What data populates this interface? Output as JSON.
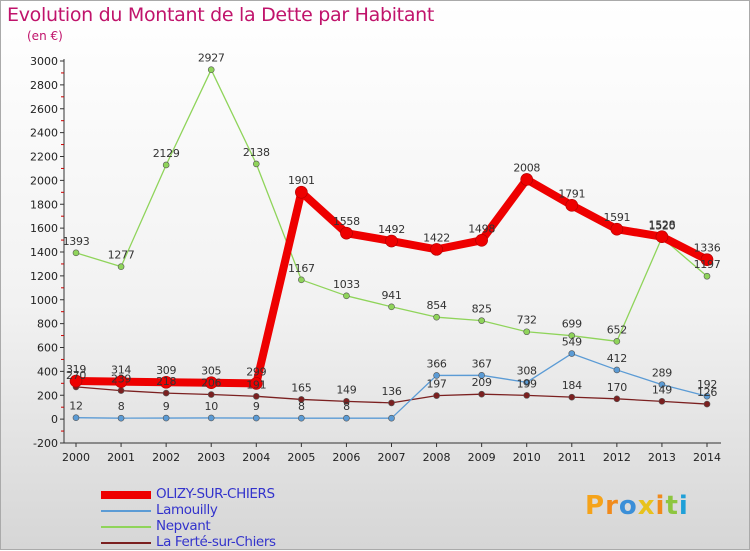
{
  "title": "Evolution du Montant de la Dette par Habitant",
  "unit_label": "(en €)",
  "logo": {
    "text": "Proxiti",
    "letters": [
      "P",
      "r",
      "o",
      "x",
      "i",
      "t",
      "i"
    ],
    "colors": [
      "#f5a31a",
      "#f08a1c",
      "#3b8fd8",
      "#e8c21c",
      "#f08a1c",
      "#8dc63f",
      "#1fa0d8"
    ]
  },
  "chart_data": {
    "type": "line",
    "title": "Evolution du Montant de la Dette par Habitant",
    "ylabel": "(en €)",
    "xlabel": "",
    "x": [
      2000,
      2001,
      2002,
      2003,
      2004,
      2005,
      2006,
      2007,
      2008,
      2009,
      2010,
      2011,
      2012,
      2013,
      2014
    ],
    "yticks": [
      -200,
      0,
      200,
      400,
      600,
      800,
      1000,
      1200,
      1400,
      1600,
      1800,
      2000,
      2200,
      2400,
      2600,
      2800,
      3000
    ],
    "ylim": [
      -200,
      3000
    ],
    "grid": false,
    "legend_position": "bottom-left",
    "series": [
      {
        "name": "OLIZY-SUR-CHIERS",
        "color": "#ee0000",
        "width": 8,
        "dot": 6,
        "values": [
          319,
          314,
          309,
          305,
          299,
          1901,
          1558,
          1492,
          1422,
          1498,
          2008,
          1791,
          1591,
          1528,
          1336
        ],
        "labels": [
          "319",
          "314",
          "309",
          "305",
          "299",
          "1901",
          "1558",
          "1492",
          "1422",
          "1498",
          "2008",
          "1791",
          "1591",
          "1528",
          "1336"
        ]
      },
      {
        "name": "Lamouilly",
        "color": "#5b9bd5",
        "width": 1.3,
        "dot": 3,
        "values": [
          12,
          8,
          9,
          10,
          9,
          8,
          8,
          8,
          366,
          367,
          308,
          549,
          412,
          289,
          192
        ],
        "labels": [
          "12",
          "8",
          "9",
          "10",
          "9",
          "8",
          "8",
          "",
          "366",
          "367",
          "308",
          "549",
          "412",
          "289",
          "192"
        ]
      },
      {
        "name": "Nepvant",
        "color": "#8fd45a",
        "width": 1.3,
        "dot": 3,
        "values": [
          1393,
          1277,
          2129,
          2927,
          2138,
          1167,
          1033,
          941,
          854,
          825,
          732,
          699,
          652,
          1520,
          1197
        ],
        "labels": [
          "1393",
          "1277",
          "2129",
          "2927",
          "2138",
          "1167",
          "1033",
          "941",
          "854",
          "825",
          "732",
          "699",
          "652",
          "1520",
          "1197"
        ]
      },
      {
        "name": "La Ferté-sur-Chiers",
        "color": "#7b2020",
        "width": 1.3,
        "dot": 3,
        "values": [
          270,
          239,
          218,
          206,
          191,
          165,
          149,
          136,
          197,
          209,
          199,
          184,
          170,
          149,
          126
        ],
        "labels": [
          "270",
          "239",
          "218",
          "206",
          "191",
          "165",
          "149",
          "136",
          "197",
          "209",
          "199",
          "184",
          "170",
          "149",
          "126"
        ]
      }
    ]
  }
}
